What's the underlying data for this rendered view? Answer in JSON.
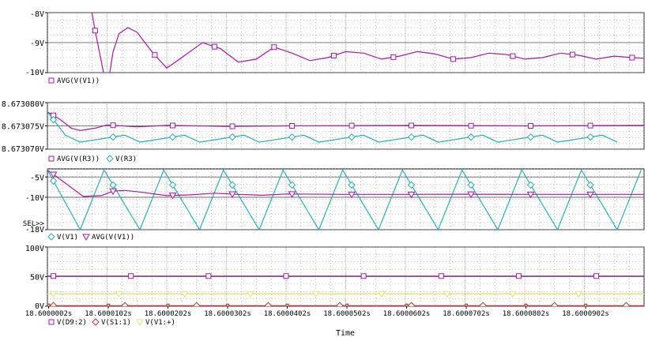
{
  "colors": {
    "frame": "#000000",
    "grid": "#8c8c8c",
    "magenta": "#a01aa0",
    "cyan": "#2aaeb0",
    "red": "#c0392b",
    "yellow": "#e6e37a"
  },
  "chart_data": {
    "type": "line",
    "xlabel": "Time",
    "x_ticks": [
      "18.6000002s",
      "18.6000102s",
      "18.6000202s",
      "18.6000302s",
      "18.6000402s",
      "18.6000502s",
      "18.6000602s",
      "18.6000702s",
      "18.6000802s",
      "18.6000902s"
    ],
    "x_tick_values_us": [
      0.2,
      10.2,
      20.2,
      30.2,
      40.2,
      50.2,
      60.2,
      70.2,
      80.2,
      90.2
    ],
    "x_range_us": [
      0,
      100
    ],
    "panels": [
      {
        "ylim": [
          -10,
          -8
        ],
        "y_ticks": [
          {
            "v": -8,
            "label": "-8V"
          },
          {
            "v": -9,
            "label": "-9V"
          },
          {
            "v": -10,
            "label": "-10V"
          }
        ],
        "legend": [
          {
            "name": "AVG(V(V1))",
            "color": "magenta",
            "marker": "square"
          }
        ],
        "series": [
          {
            "name": "AVG(V(V1))",
            "color": "magenta",
            "marker": "square",
            "marker_every_us": 10,
            "points": [
              [
                7,
                -7.5
              ],
              [
                8,
                -8.6
              ],
              [
                9,
                -9.6
              ],
              [
                10,
                -10.6
              ],
              [
                11,
                -9.3
              ],
              [
                12,
                -8.7
              ],
              [
                13.5,
                -8.5
              ],
              [
                15,
                -8.65
              ],
              [
                17.5,
                -9.3
              ],
              [
                20,
                -9.85
              ],
              [
                22.5,
                -9.5
              ],
              [
                26,
                -9.0
              ],
              [
                29,
                -9.2
              ],
              [
                32,
                -9.65
              ],
              [
                35,
                -9.55
              ],
              [
                38,
                -9.15
              ],
              [
                41,
                -9.35
              ],
              [
                44,
                -9.6
              ],
              [
                47,
                -9.5
              ],
              [
                50,
                -9.3
              ],
              [
                53,
                -9.35
              ],
              [
                56,
                -9.55
              ],
              [
                59,
                -9.45
              ],
              [
                62,
                -9.3
              ],
              [
                65,
                -9.38
              ],
              [
                68,
                -9.55
              ],
              [
                71,
                -9.5
              ],
              [
                74,
                -9.35
              ],
              [
                77,
                -9.4
              ],
              [
                80,
                -9.55
              ],
              [
                83,
                -9.5
              ],
              [
                86,
                -9.35
              ],
              [
                89,
                -9.42
              ],
              [
                92,
                -9.55
              ],
              [
                95,
                -9.45
              ],
              [
                98,
                -9.5
              ],
              [
                100,
                -9.52
              ]
            ]
          }
        ]
      },
      {
        "ylim": [
          8.67307,
          8.67308
        ],
        "y_ticks": [
          {
            "v": 8.67308,
            "label": "8.673080V"
          },
          {
            "v": 8.673075,
            "label": "8.673075V"
          },
          {
            "v": 8.67307,
            "label": "8.673070V"
          }
        ],
        "legend": [
          {
            "name": "AVG(V(R3))",
            "color": "magenta",
            "marker": "square"
          },
          {
            "name": "V(R3)",
            "color": "cyan",
            "marker": "diamond"
          }
        ],
        "series": [
          {
            "name": "AVG(V(R3))",
            "color": "magenta",
            "marker": "square",
            "marker_every_us": 10,
            "points": [
              [
                0,
                8.673078
              ],
              [
                2,
                8.6730765
              ],
              [
                4,
                8.6730745
              ],
              [
                5.5,
                8.673074
              ],
              [
                8,
                8.6730745
              ],
              [
                10,
                8.6730752
              ],
              [
                15,
                8.6730748
              ],
              [
                20,
                8.6730751
              ],
              [
                30,
                8.6730749
              ],
              [
                40,
                8.673075
              ],
              [
                60,
                8.6730751
              ],
              [
                80,
                8.673075
              ],
              [
                100,
                8.6730751
              ]
            ]
          },
          {
            "name": "V(R3)",
            "color": "cyan",
            "marker": "diamond",
            "marker_every_us": 10,
            "period_us": 10,
            "wave": "triangle",
            "points": [
              [
                0,
                8.673078
              ],
              [
                3,
                8.673073
              ],
              [
                5.5,
                8.6730715
              ],
              [
                9,
                8.6730795
              ],
              [
                10,
                8.6730795
              ],
              [
                13,
                8.6730735
              ],
              [
                15.5,
                8.6730715
              ],
              [
                19,
                8.6730795
              ]
            ]
          }
        ]
      },
      {
        "ylim": [
          -18,
          -3
        ],
        "y_ticks": [
          {
            "v": -5,
            "label": "-5V"
          },
          {
            "v": -10,
            "label": "-10V"
          },
          {
            "v": -18,
            "label": "-18V"
          }
        ],
        "y_note": "SEL>>",
        "legend": [
          {
            "name": "V(V1)",
            "color": "cyan",
            "marker": "diamond"
          },
          {
            "name": "AVG(V(V1))",
            "color": "magenta",
            "marker": "triangle-down"
          }
        ],
        "series": [
          {
            "name": "V(V1)",
            "color": "cyan",
            "marker": "diamond",
            "marker_every_us": 10,
            "period_us": 10,
            "wave": "triangle",
            "points": [
              [
                0,
                -3.3
              ],
              [
                5.5,
                -18
              ],
              [
                9.5,
                -3.3
              ],
              [
                15.5,
                -18
              ],
              [
                19.5,
                -3.3
              ]
            ]
          },
          {
            "name": "AVG(V(V1))",
            "color": "magenta",
            "marker": "triangle-down",
            "marker_every_us": 10,
            "points": [
              [
                0,
                -3.3
              ],
              [
                3,
                -6.5
              ],
              [
                6,
                -9.8
              ],
              [
                9,
                -9.6
              ],
              [
                11,
                -8.5
              ],
              [
                13,
                -8.3
              ],
              [
                16,
                -8.8
              ],
              [
                20,
                -9.6
              ],
              [
                24,
                -9.4
              ],
              [
                28,
                -9.0
              ],
              [
                32,
                -9.3
              ],
              [
                36,
                -9.5
              ],
              [
                40,
                -9.2
              ],
              [
                50,
                -9.3
              ],
              [
                60,
                -9.3
              ],
              [
                70,
                -9.25
              ],
              [
                80,
                -9.3
              ],
              [
                90,
                -9.3
              ],
              [
                100,
                -9.3
              ]
            ]
          }
        ]
      },
      {
        "ylim": [
          0,
          100
        ],
        "y_ticks": [
          {
            "v": 100,
            "label": "100V"
          },
          {
            "v": 50,
            "label": "50V"
          },
          {
            "v": 0,
            "label": "0V"
          }
        ],
        "legend": [
          {
            "name": "V(D9:2)",
            "color": "magenta",
            "marker": "square"
          },
          {
            "name": "V(S1:1)",
            "color": "red",
            "marker": "diamond"
          },
          {
            "name": "V(V1:+)",
            "color": "yellow",
            "marker": "triangle-down"
          }
        ],
        "series": [
          {
            "name": "V(D9:2)",
            "color": "magenta",
            "marker": "square",
            "marker_every_us": 13,
            "points": [
              [
                0,
                51
              ],
              [
                100,
                51
              ]
            ]
          },
          {
            "name": "V(S1:1)",
            "color": "red",
            "marker": "diamond",
            "marker_every_us": 12,
            "period_us": 10,
            "wave": "pulse",
            "points": [
              [
                0,
                1
              ],
              [
                100,
                1
              ]
            ]
          },
          {
            "name": "V(V1:+)",
            "color": "yellow",
            "marker": "triangle-down",
            "marker_every_us": 11,
            "points": [
              [
                0,
                21
              ],
              [
                100,
                21
              ]
            ]
          }
        ]
      }
    ]
  }
}
